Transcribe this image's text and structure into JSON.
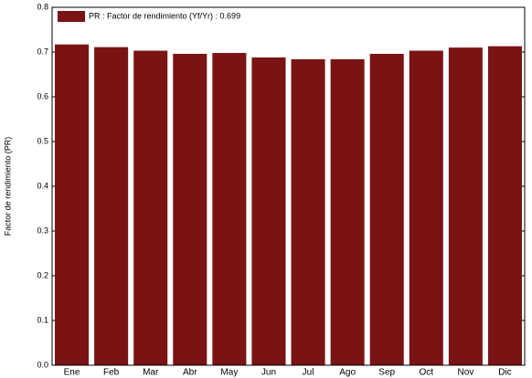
{
  "chart_data": {
    "type": "bar",
    "ylabel": "Factor de rendimiento (PR)",
    "categories": [
      "Ene",
      "Feb",
      "Mar",
      "Abr",
      "May",
      "Jun",
      "Jul",
      "Ago",
      "Sep",
      "Oct",
      "Nov",
      "Dic"
    ],
    "series": [
      {
        "name": "PR : Factor de rendimiento (Yf/Yr) :  0.699",
        "color": "#7a1414",
        "values": [
          0.717,
          0.711,
          0.703,
          0.696,
          0.698,
          0.688,
          0.684,
          0.684,
          0.696,
          0.703,
          0.71,
          0.713
        ]
      }
    ],
    "ylim": [
      0,
      0.8
    ],
    "yticks": [
      {
        "value": 0,
        "label": "0.0"
      },
      0.1,
      0.2,
      0.3,
      0.4,
      0.5,
      0.6,
      0.7,
      0.8
    ],
    "legend": "upper left"
  }
}
